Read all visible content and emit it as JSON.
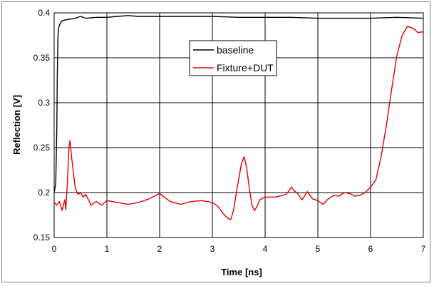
{
  "chart_data": {
    "type": "line",
    "title": "",
    "xlabel": "Time [ns]",
    "ylabel": "Reflection [V]",
    "xlim": [
      0,
      7
    ],
    "ylim": [
      0.15,
      0.4
    ],
    "xticks": [
      0,
      1,
      2,
      3,
      4,
      5,
      6,
      7
    ],
    "yticks": [
      0.15,
      0.2,
      0.25,
      0.3,
      0.35,
      0.4
    ],
    "ytick_labels": [
      "0.15",
      "0.2",
      "0.25",
      "0.3",
      "0.35",
      "0.4"
    ],
    "grid": true,
    "legend_position": "upper-center",
    "series": [
      {
        "name": "baseline",
        "color": "#000000",
        "x": [
          0.0,
          0.03,
          0.05,
          0.06,
          0.07,
          0.08,
          0.1,
          0.12,
          0.15,
          0.2,
          0.3,
          0.4,
          0.5,
          0.6,
          0.8,
          1.0,
          1.2,
          1.4,
          1.6,
          2.0,
          2.5,
          3.0,
          3.5,
          4.0,
          4.5,
          5.0,
          5.5,
          6.0,
          6.5,
          7.0
        ],
        "y": [
          0.2,
          0.21,
          0.27,
          0.33,
          0.37,
          0.382,
          0.386,
          0.389,
          0.391,
          0.392,
          0.393,
          0.394,
          0.396,
          0.394,
          0.395,
          0.395,
          0.396,
          0.397,
          0.396,
          0.396,
          0.396,
          0.396,
          0.395,
          0.395,
          0.395,
          0.394,
          0.394,
          0.394,
          0.395,
          0.394
        ]
      },
      {
        "name": "Fixture+DUT",
        "color": "#e00000",
        "x": [
          0.0,
          0.05,
          0.1,
          0.15,
          0.2,
          0.22,
          0.25,
          0.28,
          0.3,
          0.33,
          0.36,
          0.4,
          0.45,
          0.5,
          0.55,
          0.6,
          0.7,
          0.8,
          0.9,
          1.0,
          1.2,
          1.4,
          1.6,
          1.8,
          2.0,
          2.2,
          2.4,
          2.6,
          2.8,
          3.0,
          3.1,
          3.2,
          3.3,
          3.35,
          3.4,
          3.45,
          3.5,
          3.55,
          3.6,
          3.65,
          3.7,
          3.75,
          3.8,
          3.85,
          3.9,
          4.0,
          4.2,
          4.4,
          4.5,
          4.55,
          4.6,
          4.7,
          4.8,
          4.9,
          5.0,
          5.1,
          5.2,
          5.3,
          5.4,
          5.5,
          5.6,
          5.7,
          5.8,
          5.9,
          6.0,
          6.1,
          6.2,
          6.3,
          6.4,
          6.5,
          6.6,
          6.7,
          6.8,
          6.9,
          7.0
        ],
        "y": [
          0.189,
          0.186,
          0.19,
          0.18,
          0.192,
          0.181,
          0.21,
          0.25,
          0.258,
          0.24,
          0.225,
          0.205,
          0.198,
          0.2,
          0.195,
          0.198,
          0.186,
          0.19,
          0.186,
          0.191,
          0.189,
          0.187,
          0.189,
          0.193,
          0.199,
          0.19,
          0.187,
          0.19,
          0.191,
          0.189,
          0.185,
          0.177,
          0.171,
          0.17,
          0.18,
          0.198,
          0.215,
          0.232,
          0.24,
          0.228,
          0.205,
          0.186,
          0.18,
          0.185,
          0.192,
          0.195,
          0.195,
          0.198,
          0.206,
          0.202,
          0.2,
          0.192,
          0.201,
          0.193,
          0.191,
          0.187,
          0.193,
          0.197,
          0.196,
          0.2,
          0.199,
          0.196,
          0.197,
          0.2,
          0.206,
          0.214,
          0.24,
          0.275,
          0.315,
          0.353,
          0.375,
          0.385,
          0.383,
          0.378,
          0.379
        ]
      }
    ]
  }
}
